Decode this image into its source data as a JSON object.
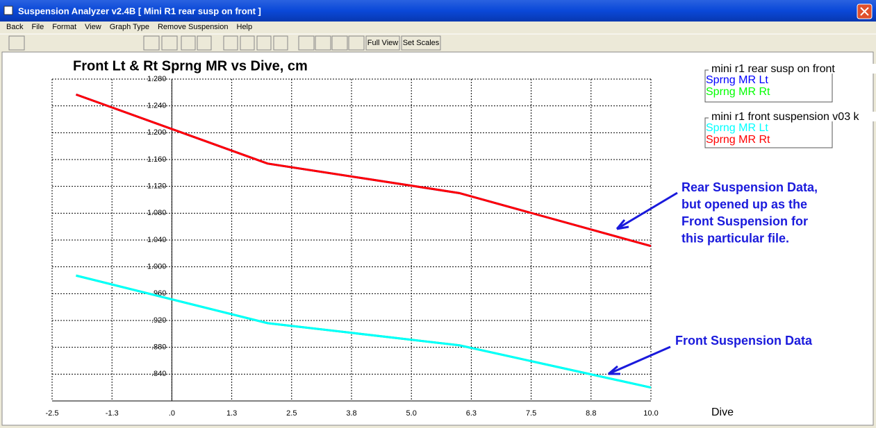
{
  "window": {
    "title": "Suspension Analyzer v2.4B  [ Mini R1 rear susp on front ]"
  },
  "menu": {
    "items": [
      "Back",
      "File",
      "Format",
      "View",
      "Graph Type",
      "Remove Suspension",
      "Help"
    ]
  },
  "toolbar": {
    "buttons": [
      "Full View",
      "Set Scales"
    ]
  },
  "chart_data": {
    "type": "line",
    "title": "Front Lt & Rt Sprng MR vs Dive, cm",
    "x_label": "Dive",
    "x": [
      -2,
      2,
      6,
      10
    ],
    "series": [
      {
        "name": "Sprng MR Lt",
        "color": "#0000ff",
        "values": [
          1.257,
          1.154,
          1.11,
          1.031
        ]
      },
      {
        "name": "Sprng MR Rt",
        "color": "#00ff00",
        "values": [
          0.987,
          0.916,
          0.883,
          0.82
        ]
      },
      {
        "name": "Sprng MR Lt",
        "color": "#00ffff",
        "values": [
          0.987,
          0.916,
          0.883,
          0.82
        ]
      },
      {
        "name": "Sprng MR Rt",
        "color": "#ff0000",
        "values": [
          1.257,
          1.154,
          1.11,
          1.031
        ]
      }
    ],
    "legend_titles": [
      "mini r1 rear susp on front",
      "mini r1 front suspension v03 k"
    ],
    "xlim": [
      -2.5,
      10
    ],
    "xticks": [
      -2.5,
      {
        "value": -1.25,
        "label": "-1.3"
      },
      {
        "value": 0,
        "label": ".0"
      },
      {
        "value": 1.25,
        "label": "1.3"
      },
      2.5,
      {
        "value": 3.75,
        "label": "3.8"
      },
      {
        "value": 5,
        "label": "5.0"
      },
      {
        "value": 6.25,
        "label": "6.3"
      },
      7.5,
      {
        "value": 8.75,
        "label": "8.8"
      },
      {
        "value": 10,
        "label": "10.0"
      }
    ],
    "ylim": [
      0.8,
      1.28
    ],
    "yticks": [
      {
        "value": 1.28,
        "label": "1.280"
      },
      {
        "value": 1.24,
        "label": "1.240"
      },
      {
        "value": 1.2,
        "label": "1.200"
      },
      {
        "value": 1.16,
        "label": "1.160"
      },
      {
        "value": 1.12,
        "label": "1.120"
      },
      {
        "value": 1.08,
        "label": "1.080"
      },
      {
        "value": 1.04,
        "label": "1.040"
      },
      {
        "value": 1,
        "label": "1.000"
      },
      {
        "value": 0.96,
        "label": ".960"
      },
      {
        "value": 0.92,
        "label": ".920"
      },
      {
        "value": 0.88,
        "label": ".880"
      },
      {
        "value": 0.84,
        "label": ".840"
      }
    ],
    "grid": true,
    "annotations": [
      {
        "lines": [
          "Rear Suspension Data,",
          "but opened up as the",
          "Front Suspension for",
          "this particular file."
        ],
        "color": "#1a1adc"
      },
      {
        "lines": [
          "Front Suspension Data"
        ],
        "color": "#1a1adc"
      }
    ]
  }
}
